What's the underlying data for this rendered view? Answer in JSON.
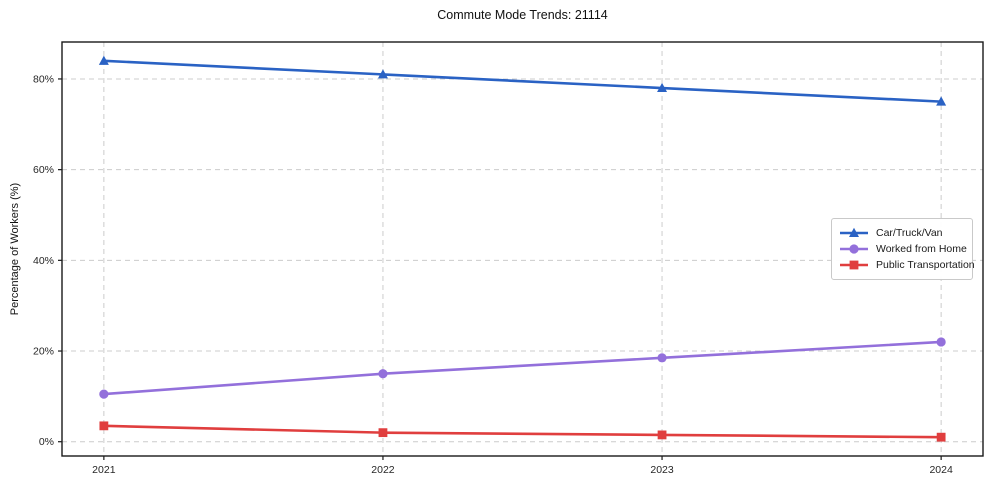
{
  "chart_data": {
    "type": "line",
    "title": "Commute Mode Trends: 21114",
    "xlabel": "",
    "ylabel": "Percentage of Workers (%)",
    "x": [
      2021,
      2022,
      2023,
      2024
    ],
    "x_tick_labels": [
      "2021",
      "2022",
      "2023",
      "2024"
    ],
    "series": [
      {
        "name": "Car/Truck/Van",
        "color": "#2a62c4",
        "marker": "triangle",
        "values": [
          84,
          81,
          78,
          75
        ]
      },
      {
        "name": "Worked from Home",
        "color": "#9370db",
        "marker": "circle",
        "values": [
          10.5,
          15,
          18.5,
          22
        ]
      },
      {
        "name": "Public Transportation",
        "color": "#e03e3e",
        "marker": "square",
        "values": [
          3.5,
          2,
          1.5,
          1
        ]
      }
    ],
    "yticks": [
      0,
      20,
      40,
      60,
      80
    ],
    "ytick_labels": [
      "0%",
      "20%",
      "40%",
      "60%",
      "80%"
    ],
    "xlim": [
      2020.85,
      2024.15
    ],
    "ylim": [
      -3.15,
      88.15
    ],
    "grid": {
      "show": true,
      "style": "dashed",
      "color": "#cccccc"
    },
    "legend": {
      "position": "center-right",
      "border_color": "#c9c9c9",
      "background": "#ffffff"
    },
    "axis_color": "#1a1a1a",
    "tick_label_color": "#262626",
    "background": "#ffffff"
  }
}
